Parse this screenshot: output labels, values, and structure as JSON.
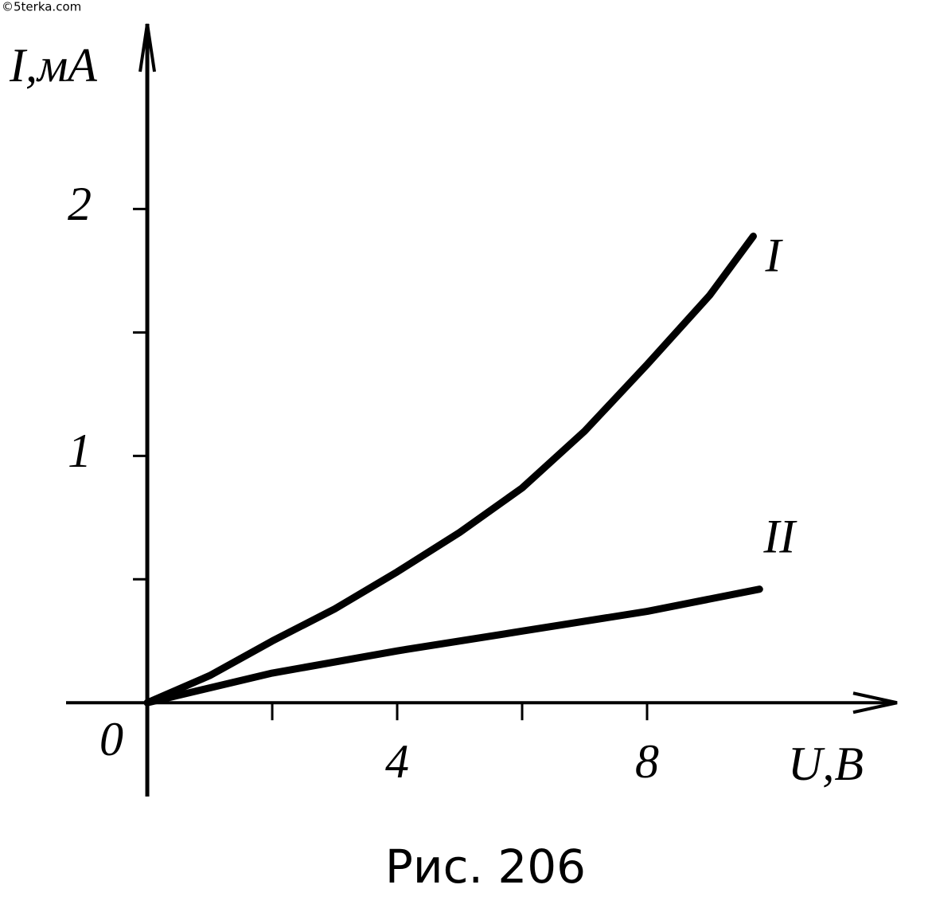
{
  "chart_data": {
    "type": "line",
    "watermark": "©5terka.com",
    "caption": "Рис. 206",
    "y_label": "I,мA",
    "x_label": "U,B",
    "xlim": [
      -1.3,
      12
    ],
    "ylim": [
      -0.38,
      2.75
    ],
    "xticks": [
      0,
      {
        "value": 2,
        "label": null
      },
      4,
      {
        "value": 6,
        "label": null
      },
      8
    ],
    "yticks": [
      {
        "value": 0.5,
        "label": null
      },
      1,
      {
        "value": 1.5,
        "label": null
      },
      2
    ],
    "series": [
      {
        "name": "I",
        "color": "#000000",
        "x": [
          0,
          1,
          2,
          3,
          4,
          5,
          6,
          7,
          8,
          9,
          9.7
        ],
        "values": [
          0,
          0.11,
          0.25,
          0.38,
          0.53,
          0.69,
          0.87,
          1.1,
          1.37,
          1.65,
          1.89
        ]
      },
      {
        "name": "II",
        "color": "#000000",
        "x": [
          0,
          2,
          4,
          6,
          8,
          9.8
        ],
        "values": [
          0,
          0.12,
          0.21,
          0.29,
          0.37,
          0.46
        ]
      }
    ]
  }
}
